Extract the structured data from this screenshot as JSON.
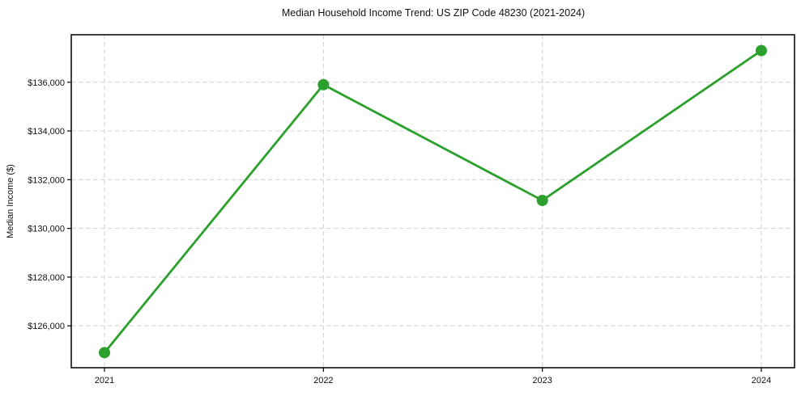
{
  "chart_data": {
    "type": "line",
    "title": "Median Household Income Trend: US ZIP Code 48230 (2021-2024)",
    "xlabel": "",
    "ylabel": "Median Income ($)",
    "categories": [
      "2021",
      "2022",
      "2023",
      "2024"
    ],
    "series": [
      {
        "name": "Median Household Income",
        "values": [
          124900,
          135900,
          131150,
          137300
        ]
      }
    ],
    "ytick_values": [
      126000,
      128000,
      130000,
      132000,
      134000,
      136000
    ],
    "ytick_labels": [
      "$126,000",
      "$128,000",
      "$130,000",
      "$132,000",
      "$134,000",
      "$136,000"
    ],
    "ylim": [
      124280,
      137950
    ],
    "grid": "dashed",
    "legend_position": "none",
    "colors": {
      "line": "#2ca02c",
      "marker": "#2ca02c",
      "grid": "#d0d0d0",
      "spine": "#000000",
      "text": "#111111",
      "background": "#ffffff"
    }
  }
}
